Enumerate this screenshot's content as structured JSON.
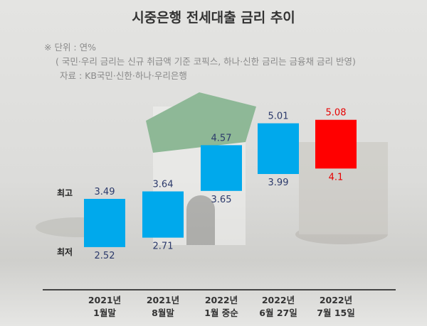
{
  "chart_data": {
    "type": "bar",
    "subtype": "floating-range",
    "title": "시중은행 전세대출 금리 추이",
    "notes": [
      "※ 단위 : 연%",
      "( 국민·우리 금리는 신규 취급액 기준 코픽스, 하나·신한 금리는 금융채 금리 반영)",
      "자료 : KB국민·신한·하나·우리은행"
    ],
    "range_labels": {
      "high": "최고",
      "low": "최저"
    },
    "categories": [
      [
        "2021년",
        "1월말"
      ],
      [
        "2021년",
        "8월말"
      ],
      [
        "2022년",
        "1월 중순"
      ],
      [
        "2022년",
        "6월 27일"
      ],
      [
        "2022년",
        "7월 15일"
      ]
    ],
    "series": [
      {
        "name": "최고",
        "values": [
          3.49,
          3.64,
          4.57,
          5.01,
          5.08
        ]
      },
      {
        "name": "최저",
        "values": [
          2.52,
          2.71,
          3.65,
          3.99,
          4.1
        ]
      }
    ],
    "value_labels_high": [
      "3.49",
      "3.64",
      "4.57",
      "5.01",
      "5.08"
    ],
    "value_labels_low": [
      "2.52",
      "2.71",
      "3.65",
      "3.99",
      "4.1"
    ],
    "colors": {
      "bar": "#00a9ec",
      "highlight_bar": "#ff0000",
      "label": "#2c3a6b",
      "highlight_label": "#e60000"
    },
    "highlight_index": 4
  }
}
